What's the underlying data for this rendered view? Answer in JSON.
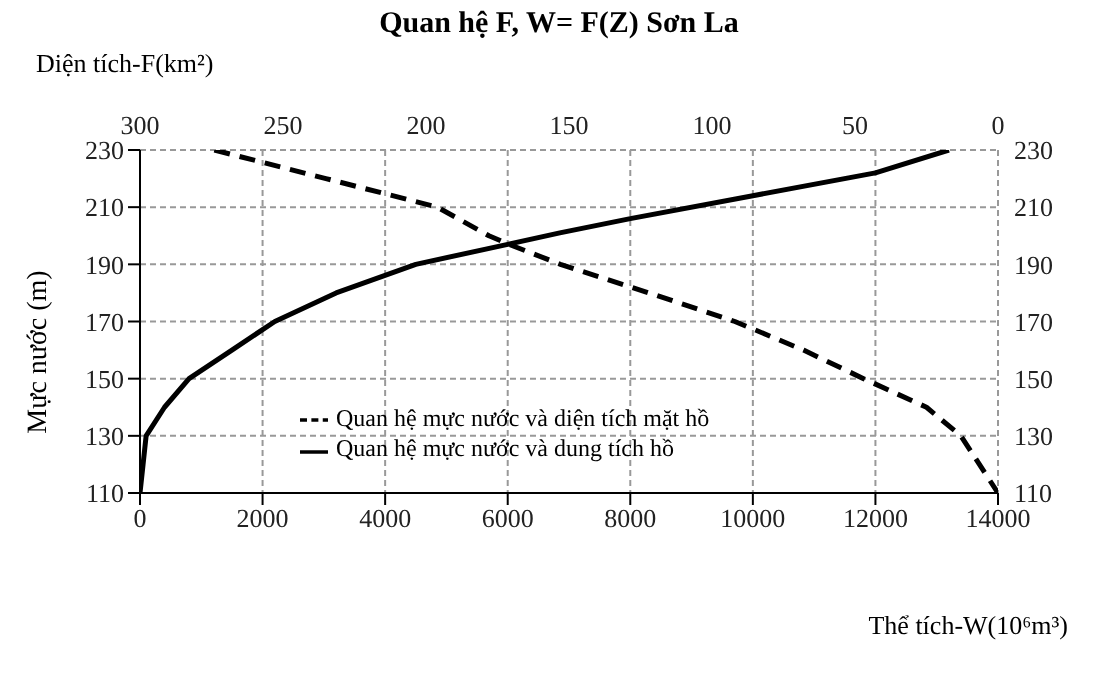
{
  "chart_data": {
    "type": "line",
    "title": "Quan hệ F, W= F(Z) Sơn La",
    "xlabel": "Thể tích-W(10⁶m³)",
    "x2label": "Diện tích-F(km²)",
    "ylabel": "Mực nước (m)",
    "series": [
      {
        "name": "Quan hệ mực nước và dung tích hồ",
        "color": "#000000",
        "line_style": "solid",
        "x": [
          0,
          50,
          100,
          400,
          800,
          1500,
          2200,
          3200,
          4500,
          6000,
          6850,
          8000,
          10000,
          12000,
          13200
        ],
        "values": [
          110,
          120,
          130,
          140,
          150,
          160,
          170,
          180,
          190,
          197,
          201,
          206,
          214,
          222,
          230
        ]
      },
      {
        "name": "Quan hệ mực nước và diện tích mặt hồ",
        "color": "#000000",
        "line_style": "dashed",
        "axis": "x2",
        "x": [
          274,
          235,
          196,
          178,
          171,
          153,
          122,
          92,
          68,
          47,
          25,
          13,
          0
        ],
        "values": [
          230,
          220,
          210,
          200,
          197,
          190,
          180,
          170,
          160,
          150,
          140,
          130,
          110
        ]
      }
    ],
    "xlim": [
      0,
      14000
    ],
    "xticks": [
      0,
      2000,
      4000,
      6000,
      8000,
      10000,
      12000,
      14000
    ],
    "x2lim": [
      300,
      0
    ],
    "x2ticks": [
      300,
      250,
      200,
      150,
      100,
      50,
      0
    ],
    "ylim": [
      110,
      230
    ],
    "yticks": [
      110,
      130,
      150,
      170,
      190,
      210,
      230
    ],
    "y2lim": [
      110,
      230
    ],
    "y2ticks": [
      110,
      130,
      150,
      170,
      190,
      210,
      230
    ],
    "grid": true,
    "legend": "center",
    "marker": "none"
  }
}
